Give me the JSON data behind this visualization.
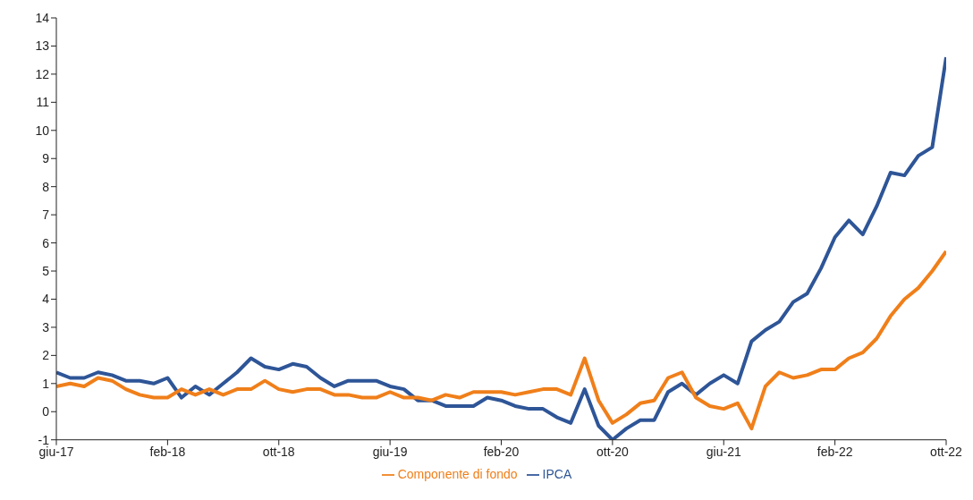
{
  "chart_data": {
    "type": "line",
    "categories": [
      "giu-17",
      null,
      null,
      null,
      null,
      null,
      null,
      null,
      "feb-18",
      null,
      null,
      null,
      null,
      null,
      null,
      null,
      "ott-18",
      null,
      null,
      null,
      null,
      null,
      null,
      null,
      "giu-19",
      null,
      null,
      null,
      null,
      null,
      null,
      null,
      "feb-20",
      null,
      null,
      null,
      null,
      null,
      null,
      null,
      "ott-20",
      null,
      null,
      null,
      null,
      null,
      null,
      null,
      "giu-21",
      null,
      null,
      null,
      null,
      null,
      null,
      null,
      "feb-22",
      null,
      null,
      null,
      null,
      null,
      null,
      null,
      "ott-22"
    ],
    "series": [
      {
        "name": "IPCA",
        "color": "#2e5597",
        "values": [
          1.4,
          1.2,
          1.2,
          1.4,
          1.3,
          1.1,
          1.1,
          1.0,
          1.2,
          0.5,
          0.9,
          0.6,
          1.0,
          1.4,
          1.9,
          1.6,
          1.5,
          1.7,
          1.6,
          1.2,
          0.9,
          1.1,
          1.1,
          1.1,
          0.9,
          0.8,
          0.4,
          0.4,
          0.2,
          0.2,
          0.2,
          0.5,
          0.4,
          0.2,
          0.1,
          0.1,
          -0.2,
          -0.4,
          0.8,
          -0.5,
          -1.0,
          -0.6,
          -0.3,
          -0.3,
          0.7,
          1.0,
          0.6,
          1.0,
          1.3,
          1.0,
          2.5,
          2.9,
          3.2,
          3.9,
          4.2,
          5.1,
          6.2,
          6.8,
          6.3,
          7.3,
          8.5,
          8.4,
          9.1,
          9.4,
          12.6
        ]
      },
      {
        "name": "Componente di fondo",
        "color": "#f07f1a",
        "values": [
          0.9,
          1.0,
          0.9,
          1.2,
          1.1,
          0.8,
          0.6,
          0.5,
          0.5,
          0.8,
          0.6,
          0.8,
          0.6,
          0.8,
          0.8,
          1.1,
          0.8,
          0.7,
          0.8,
          0.8,
          0.6,
          0.6,
          0.5,
          0.5,
          0.7,
          0.5,
          0.5,
          0.4,
          0.6,
          0.5,
          0.7,
          0.7,
          0.7,
          0.6,
          0.7,
          0.8,
          0.8,
          0.6,
          1.9,
          0.4,
          -0.4,
          -0.1,
          0.3,
          0.4,
          1.2,
          1.4,
          0.5,
          0.2,
          0.1,
          0.3,
          -0.6,
          0.9,
          1.4,
          1.2,
          1.3,
          1.5,
          1.5,
          1.9,
          2.1,
          2.6,
          3.4,
          4.0,
          4.4,
          5.0,
          5.7
        ]
      }
    ],
    "ylim": [
      -1,
      14
    ],
    "yticks": [
      -1,
      0,
      1,
      2,
      3,
      4,
      5,
      6,
      7,
      8,
      9,
      10,
      11,
      12,
      13,
      14
    ],
    "grid": false,
    "legend": "bottom",
    "marker": "none",
    "line_style": "solid"
  }
}
